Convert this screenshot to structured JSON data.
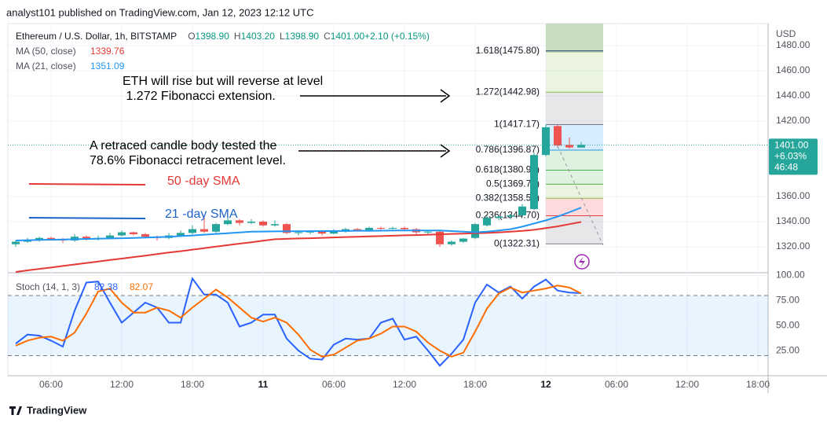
{
  "header": {
    "publisher": "analyst101 published on TradingView.com, Jan 12, 2023 12:12 UTC"
  },
  "footer": {
    "brand": "TradingView"
  },
  "chart_data": [
    {
      "type": "candlestick",
      "symbol": "Ethereum / U.S. Dollar, 1h, BITSTAMP",
      "ohlc_legend": [
        {
          "key": "O",
          "value": "1398.90"
        },
        {
          "key": "H",
          "value": "1403.20"
        },
        {
          "key": "L",
          "value": "1398.90"
        },
        {
          "key": "C",
          "value": "1401.00"
        },
        {
          "key": "",
          "value": "+2.10 (+0.15%)"
        }
      ],
      "currency": "USD",
      "last_price": {
        "price": "1401.00",
        "change": "+6.03%",
        "countdown": "46:48",
        "value": 1401
      },
      "up_color": "#26a69a",
      "down_color": "#ef5350",
      "categories": [
        null,
        null,
        null,
        "06:00",
        null,
        null,
        null,
        null,
        null,
        "12:00",
        null,
        null,
        null,
        null,
        null,
        "18:00",
        null,
        null,
        null,
        null,
        null,
        "11",
        null,
        null,
        null,
        null,
        null,
        "06:00",
        null,
        null,
        null,
        null,
        null,
        "12:00",
        null,
        null,
        null,
        null,
        null,
        "18:00",
        null,
        null,
        null,
        null,
        null,
        "12",
        null,
        null,
        null,
        null,
        null,
        "06:00",
        null,
        null,
        null,
        null,
        null,
        "12:00",
        null,
        null,
        null,
        null,
        null,
        "18:00"
      ],
      "open": [
        1322,
        1324,
        1325.5,
        1327,
        1326,
        1325,
        1328,
        1326,
        1327,
        1329,
        1331.5,
        1330,
        1328,
        1327,
        1329,
        1331,
        1334,
        1332,
        1338,
        1341,
        1339,
        1340,
        1337,
        1338,
        1331,
        1331.5,
        1332,
        1330.5,
        1332,
        1334,
        1333,
        1335,
        1334.5,
        1335,
        1334,
        1331.5,
        1332,
        1322,
        1324,
        1327,
        1337,
        1343,
        1344,
        1345,
        1350,
        1393,
        1416,
        1401,
        1398.9,
        null,
        null,
        null,
        null,
        null,
        null,
        null,
        null,
        null,
        null,
        null,
        null,
        null,
        null,
        null
      ],
      "high": [
        1325,
        1327,
        1328,
        1328,
        1327,
        1330,
        1329,
        1329,
        1331,
        1333,
        1332,
        1331,
        1329,
        1331,
        1333,
        1337,
        1345,
        1339,
        1343,
        1342,
        1342,
        1341,
        1341,
        1339,
        1333,
        1333,
        1333,
        1334,
        1335,
        1335,
        1336,
        1336,
        1336,
        1336,
        1335,
        1333,
        1333,
        1325,
        1327,
        1339,
        1345,
        1345,
        1346,
        1354,
        1395,
        1417,
        1417,
        1407,
        1403.2,
        null,
        null,
        null,
        null,
        null,
        null,
        null,
        null,
        null,
        null,
        null,
        null,
        null,
        null,
        null
      ],
      "low": [
        1320,
        1323,
        1324,
        1325,
        1323,
        1324,
        1325,
        1325,
        1326,
        1328,
        1329,
        1327,
        1325,
        1326,
        1328,
        1330,
        1331,
        1331,
        1337,
        1337,
        1338,
        1336,
        1336,
        1330,
        1329,
        1330,
        1329,
        1330,
        1331,
        1332,
        1332,
        1333,
        1334,
        1333,
        1330,
        1330,
        1320,
        1321,
        1323,
        1326,
        1336,
        1341,
        1342,
        1344,
        1349,
        1392,
        1399,
        1398,
        1398.9,
        null,
        null,
        null,
        null,
        null,
        null,
        null,
        null,
        null,
        null,
        null,
        null,
        null,
        null,
        null
      ],
      "close": [
        1324,
        1325.5,
        1327,
        1326,
        1325,
        1328,
        1326,
        1327,
        1329,
        1331.5,
        1330,
        1328,
        1327,
        1329,
        1331,
        1334,
        1332,
        1338,
        1341,
        1339,
        1340,
        1337,
        1338,
        1331,
        1331.5,
        1332,
        1330.5,
        1332,
        1334,
        1333,
        1335,
        1334.5,
        1335,
        1334,
        1331.5,
        1332,
        1322,
        1324,
        1326.5,
        1338,
        1343,
        1344,
        1345,
        1352,
        1393,
        1415,
        1400.5,
        1399,
        1401,
        null,
        null,
        null,
        null,
        null,
        null,
        null,
        null,
        null,
        null,
        null,
        null,
        null,
        null,
        null
      ],
      "series": [
        {
          "name": "MA (50, close)",
          "value_label": "1339.76",
          "color": "#e53935",
          "values": [
            1300,
            1301.2,
            1302.4,
            1303.5,
            1304.7,
            1305.9,
            1307.1,
            1308.3,
            1309.5,
            1310.6,
            1311.8,
            1313,
            1314.2,
            1315.4,
            1316.5,
            1317.7,
            1318.9,
            1320.1,
            1321.3,
            1322.5,
            1323.6,
            1324.8,
            1326,
            1326.3,
            1326.6,
            1326.8,
            1327.1,
            1327.4,
            1327.7,
            1327.9,
            1328.2,
            1328.5,
            1328.8,
            1329.1,
            1329.3,
            1329.6,
            1329.9,
            1330.2,
            1330.4,
            1330.7,
            1331,
            1331.5,
            1332,
            1332.6,
            1333.5,
            1334.8,
            1336.2,
            1338,
            1339.76,
            null,
            null,
            null,
            null,
            null,
            null,
            null,
            null,
            null,
            null,
            null,
            null,
            null,
            null,
            null
          ]
        },
        {
          "name": "MA (21, close)",
          "value_label": "1351.09",
          "color": "#2196f3",
          "values": [
            1325,
            1325.2,
            1325.4,
            1325.6,
            1325.8,
            1326,
            1326.2,
            1326.4,
            1326.6,
            1326.8,
            1327,
            1327.3,
            1327.6,
            1328,
            1328.5,
            1329,
            1329.6,
            1330.2,
            1330.8,
            1331.4,
            1332,
            1332.1,
            1332.2,
            1332.3,
            1332.3,
            1332.4,
            1332.5,
            1332.5,
            1332.6,
            1332.7,
            1332.7,
            1332.8,
            1332.9,
            1332.9,
            1333,
            1333,
            1333,
            1332.5,
            1332,
            1331.5,
            1332,
            1333,
            1334,
            1336,
            1338.5,
            1341,
            1344,
            1347.5,
            1351.09,
            null,
            null,
            null,
            null,
            null,
            null,
            null,
            null,
            null,
            null,
            null,
            null,
            null,
            null,
            null
          ]
        }
      ],
      "fibonacci": [
        {
          "label": "1.618(1475.80)",
          "price": 1475.8,
          "color": "#1a237e"
        },
        {
          "label": "1.272(1442.98)",
          "price": 1442.98,
          "color": "#8bc34a"
        },
        {
          "label": "1(1417.17)",
          "price": 1417.17,
          "color": "#787b86"
        },
        {
          "label": "0.786(1396.87)",
          "price": 1396.87,
          "color": "#2196f3"
        },
        {
          "label": "0.618(1380.94)",
          "price": 1380.94,
          "color": "#4caf50"
        },
        {
          "label": "0.5(1369.74)",
          "price": 1369.74,
          "color": "#4caf50"
        },
        {
          "label": "0.382(1358.55)",
          "price": 1358.55,
          "color": "#8bc34a"
        },
        {
          "label": "0.236(1344.70)",
          "price": 1344.7,
          "color": "#f23645"
        },
        {
          "label": "0(1322.31)",
          "price": 1322.31,
          "color": "#787b86"
        }
      ],
      "annotations": {
        "rise_note": [
          "ETH  will rise but will reverse at level",
          " 1.272 Fibonacci extension."
        ],
        "retrace_note": [
          "A retraced candle body tested the",
          "78.6% Fibonacci retracement level."
        ],
        "sma50_label": "50 -day SMA",
        "sma21_label": "21 -day SMA"
      },
      "ylim": [
        1300.6,
        1497.5
      ],
      "yticks": [
        {
          "value": 1320,
          "label": "1320.00"
        },
        {
          "value": 1340,
          "label": "1340.00"
        },
        {
          "value": 1360,
          "label": "1360.00"
        },
        {
          "value": 1420,
          "label": "1420.00"
        },
        {
          "value": 1440,
          "label": "1440.00"
        },
        {
          "value": 1460,
          "label": "1460.00"
        },
        {
          "value": 1480,
          "label": "1480.00"
        }
      ],
      "grid": true
    },
    {
      "type": "line",
      "title": "Stoch (14, 1, 3)",
      "series": [
        {
          "name": "%K",
          "value_label": "82.38",
          "color": "#2962ff",
          "values": [
            32,
            41,
            40,
            35,
            29,
            65,
            93,
            94,
            73,
            53,
            63,
            73,
            68,
            53,
            53,
            97,
            81,
            81,
            73,
            49,
            53,
            61,
            61,
            37,
            25,
            17,
            16,
            31,
            37,
            36,
            37,
            53,
            57,
            36,
            39,
            25,
            10,
            22,
            36,
            73,
            91,
            83,
            89,
            77,
            89,
            96,
            85,
            83,
            82.38,
            null,
            null,
            null,
            null,
            null,
            null,
            null,
            null,
            null,
            null,
            null,
            null,
            null,
            null,
            null
          ]
        },
        {
          "name": "%D",
          "value_label": "82.07",
          "color": "#ff6d00",
          "values": [
            30,
            35,
            38,
            39,
            35,
            43,
            62,
            84,
            87,
            73,
            63,
            63,
            68,
            65,
            58,
            68,
            77,
            86,
            78,
            68,
            58,
            54,
            58,
            53,
            41,
            26,
            19,
            21,
            28,
            35,
            37,
            42,
            49,
            49,
            44,
            33,
            25,
            19,
            23,
            44,
            67,
            82,
            88,
            83,
            85,
            87,
            90,
            88,
            82.07,
            null,
            null,
            null,
            null,
            null,
            null,
            null,
            null,
            null,
            null,
            null,
            null,
            null,
            null,
            null
          ]
        }
      ],
      "band": [
        20,
        80
      ],
      "midline": 50,
      "ylim": [
        0,
        102
      ],
      "yticks": [
        {
          "value": 25,
          "label": "25.00"
        },
        {
          "value": 50,
          "label": "50.00"
        },
        {
          "value": 75,
          "label": "75.00"
        },
        {
          "value": 100,
          "label": "100.00"
        }
      ],
      "grid": true
    }
  ]
}
